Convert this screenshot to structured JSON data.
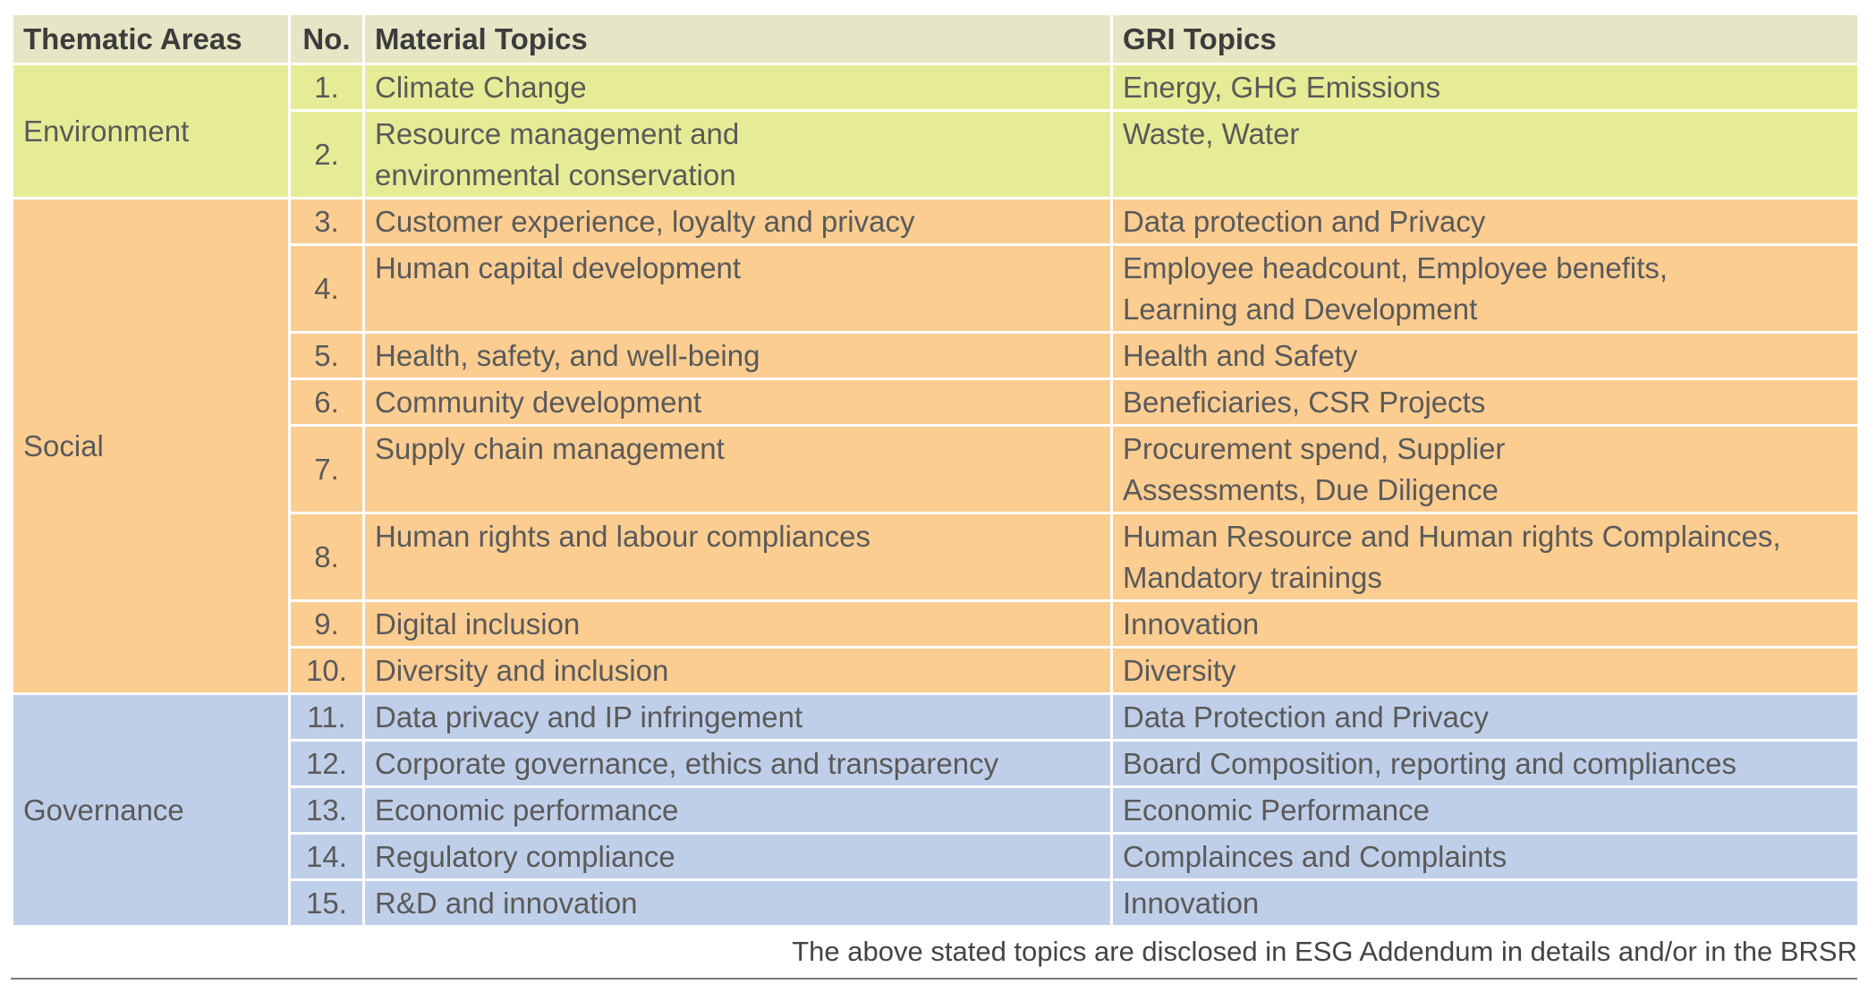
{
  "headers": {
    "thematic_areas": "Thematic Areas",
    "no": "No.",
    "material_topics": "Material Topics",
    "gri_topics": "GRI Topics"
  },
  "areas": {
    "environment": "Environment",
    "social": "Social",
    "governance": "Governance"
  },
  "rows": [
    {
      "no": "1.",
      "material": "Climate Change",
      "gri": "Energy, GHG Emissions"
    },
    {
      "no": "2.",
      "material": "Resource management and\nenvironmental conservation",
      "gri": "Waste, Water"
    },
    {
      "no": "3.",
      "material": "Customer experience, loyalty and privacy",
      "gri": "Data protection and Privacy"
    },
    {
      "no": "4.",
      "material": "Human capital development",
      "gri": "Employee headcount, Employee benefits,\nLearning and Development"
    },
    {
      "no": "5.",
      "material": "Health, safety, and well-being",
      "gri": "Health and Safety"
    },
    {
      "no": "6.",
      "material": "Community development",
      "gri": "Beneficiaries, CSR Projects"
    },
    {
      "no": "7.",
      "material": "Supply chain management",
      "gri": "Procurement spend, Supplier\nAssessments, Due Diligence"
    },
    {
      "no": "8.",
      "material": "Human rights and labour compliances",
      "gri": "Human Resource and Human rights Complainces,\nMandatory trainings"
    },
    {
      "no": "9.",
      "material": "Digital inclusion",
      "gri": "Innovation"
    },
    {
      "no": "10.",
      "material": "Diversity and inclusion",
      "gri": "Diversity"
    },
    {
      "no": "11.",
      "material": "Data privacy and IP infringement",
      "gri": "Data Protection and Privacy"
    },
    {
      "no": "12.",
      "material": "Corporate governance, ethics and transparency",
      "gri": "Board Composition, reporting and compliances"
    },
    {
      "no": "13.",
      "material": "Economic performance",
      "gri": "Economic Performance"
    },
    {
      "no": "14.",
      "material": "Regulatory compliance",
      "gri": "Complainces and Complaints"
    },
    {
      "no": "15.",
      "material": "R&D and innovation",
      "gri": "Innovation"
    }
  ],
  "footnote": "The above stated topics are disclosed in ESG Addendum in details and/or in the BRSR",
  "colors": {
    "header_bg": "#e6e6c6",
    "environment_bg": "#e6ec95",
    "social_bg": "#fbcd91",
    "governance_bg": "#bfcfe9"
  }
}
